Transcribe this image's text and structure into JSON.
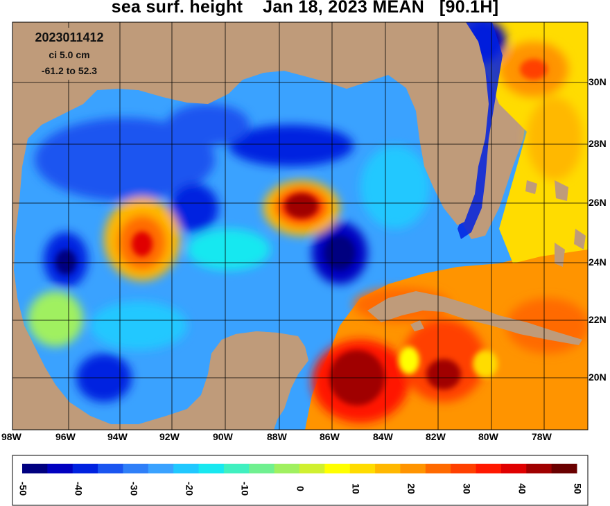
{
  "title": "sea surf. height    Jan 18, 2023 MEAN   [90.1H]",
  "info": {
    "date_code": "2023011412",
    "contour_interval": "ci 5.0 cm",
    "range": "-61.2 to 52.3"
  },
  "axes": {
    "lon_labels": [
      "98W",
      "96W",
      "94W",
      "92W",
      "90W",
      "88W",
      "86W",
      "84W",
      "82W",
      "80W",
      "78W"
    ],
    "lat_labels": [
      "30N",
      "28N",
      "26N",
      "24N",
      "22N",
      "20N"
    ]
  },
  "colorbar": {
    "tick_labels": [
      "-50",
      "-40",
      "-30",
      "-20",
      "-10",
      "0",
      "10",
      "20",
      "30",
      "40",
      "50"
    ],
    "colors": [
      "#000080",
      "#0000c0",
      "#0022e0",
      "#1a55f0",
      "#2f7ff8",
      "#3aa2ff",
      "#20c8ff",
      "#18e8f0",
      "#40f0c0",
      "#70f090",
      "#a0f060",
      "#d0f030",
      "#ffff00",
      "#ffdc00",
      "#ffb800",
      "#ff9400",
      "#ff6a00",
      "#ff4000",
      "#ff1800",
      "#e00000",
      "#a00000",
      "#6a0000"
    ]
  },
  "colors": {
    "land": "#bf9b7a",
    "grid": "#000000",
    "background": "#ffffff"
  }
}
